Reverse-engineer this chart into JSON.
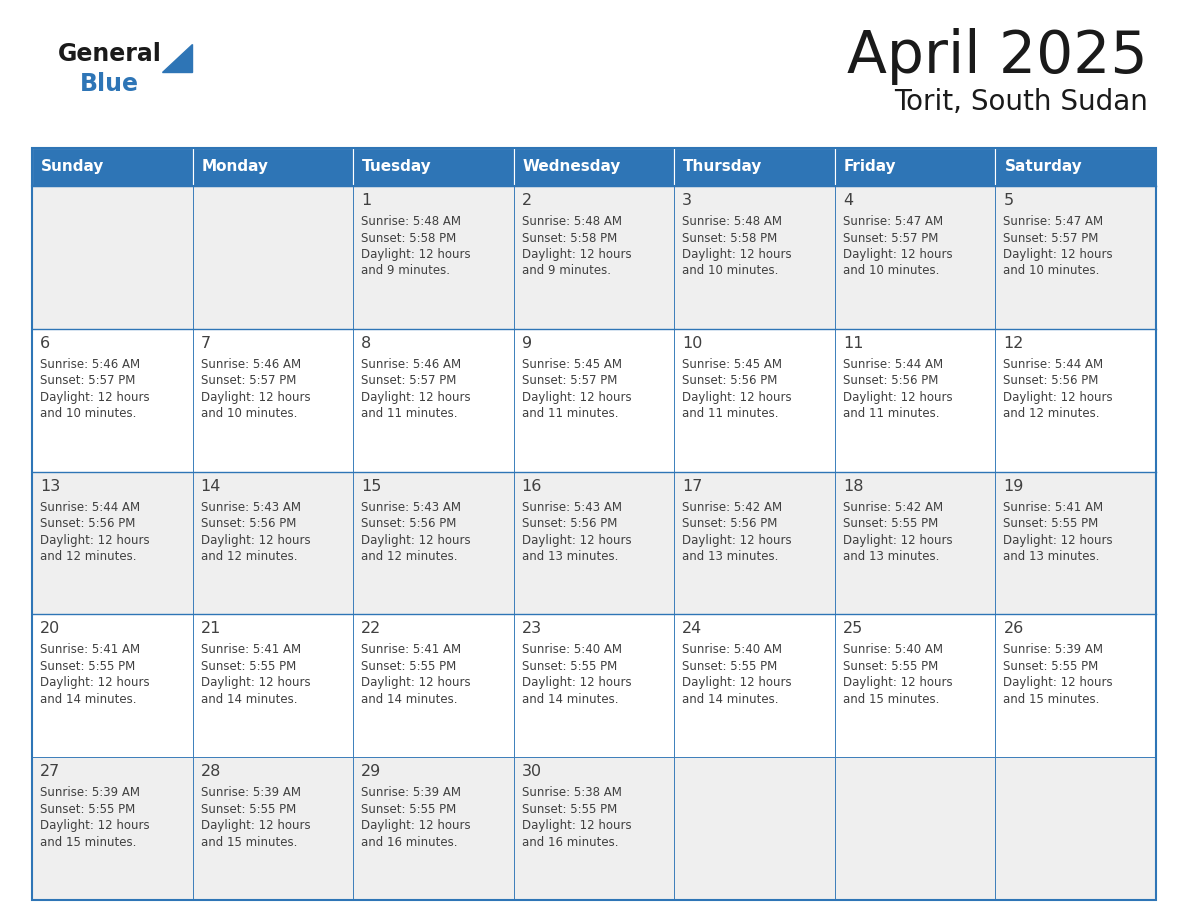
{
  "title": "April 2025",
  "subtitle": "Torit, South Sudan",
  "header_bg": "#2E75B6",
  "header_text_color": "#FFFFFF",
  "day_names": [
    "Sunday",
    "Monday",
    "Tuesday",
    "Wednesday",
    "Thursday",
    "Friday",
    "Saturday"
  ],
  "row_bg_odd": "#EFEFEF",
  "row_bg_even": "#FFFFFF",
  "border_color": "#2E75B6",
  "text_color": "#404040",
  "days": [
    {
      "date": 1,
      "col": 2,
      "row": 0,
      "sunrise": "5:48 AM",
      "sunset": "5:58 PM",
      "daylight_l1": "Daylight: 12 hours",
      "daylight_l2": "and 9 minutes."
    },
    {
      "date": 2,
      "col": 3,
      "row": 0,
      "sunrise": "5:48 AM",
      "sunset": "5:58 PM",
      "daylight_l1": "Daylight: 12 hours",
      "daylight_l2": "and 9 minutes."
    },
    {
      "date": 3,
      "col": 4,
      "row": 0,
      "sunrise": "5:48 AM",
      "sunset": "5:58 PM",
      "daylight_l1": "Daylight: 12 hours",
      "daylight_l2": "and 10 minutes."
    },
    {
      "date": 4,
      "col": 5,
      "row": 0,
      "sunrise": "5:47 AM",
      "sunset": "5:57 PM",
      "daylight_l1": "Daylight: 12 hours",
      "daylight_l2": "and 10 minutes."
    },
    {
      "date": 5,
      "col": 6,
      "row": 0,
      "sunrise": "5:47 AM",
      "sunset": "5:57 PM",
      "daylight_l1": "Daylight: 12 hours",
      "daylight_l2": "and 10 minutes."
    },
    {
      "date": 6,
      "col": 0,
      "row": 1,
      "sunrise": "5:46 AM",
      "sunset": "5:57 PM",
      "daylight_l1": "Daylight: 12 hours",
      "daylight_l2": "and 10 minutes."
    },
    {
      "date": 7,
      "col": 1,
      "row": 1,
      "sunrise": "5:46 AM",
      "sunset": "5:57 PM",
      "daylight_l1": "Daylight: 12 hours",
      "daylight_l2": "and 10 minutes."
    },
    {
      "date": 8,
      "col": 2,
      "row": 1,
      "sunrise": "5:46 AM",
      "sunset": "5:57 PM",
      "daylight_l1": "Daylight: 12 hours",
      "daylight_l2": "and 11 minutes."
    },
    {
      "date": 9,
      "col": 3,
      "row": 1,
      "sunrise": "5:45 AM",
      "sunset": "5:57 PM",
      "daylight_l1": "Daylight: 12 hours",
      "daylight_l2": "and 11 minutes."
    },
    {
      "date": 10,
      "col": 4,
      "row": 1,
      "sunrise": "5:45 AM",
      "sunset": "5:56 PM",
      "daylight_l1": "Daylight: 12 hours",
      "daylight_l2": "and 11 minutes."
    },
    {
      "date": 11,
      "col": 5,
      "row": 1,
      "sunrise": "5:44 AM",
      "sunset": "5:56 PM",
      "daylight_l1": "Daylight: 12 hours",
      "daylight_l2": "and 11 minutes."
    },
    {
      "date": 12,
      "col": 6,
      "row": 1,
      "sunrise": "5:44 AM",
      "sunset": "5:56 PM",
      "daylight_l1": "Daylight: 12 hours",
      "daylight_l2": "and 12 minutes."
    },
    {
      "date": 13,
      "col": 0,
      "row": 2,
      "sunrise": "5:44 AM",
      "sunset": "5:56 PM",
      "daylight_l1": "Daylight: 12 hours",
      "daylight_l2": "and 12 minutes."
    },
    {
      "date": 14,
      "col": 1,
      "row": 2,
      "sunrise": "5:43 AM",
      "sunset": "5:56 PM",
      "daylight_l1": "Daylight: 12 hours",
      "daylight_l2": "and 12 minutes."
    },
    {
      "date": 15,
      "col": 2,
      "row": 2,
      "sunrise": "5:43 AM",
      "sunset": "5:56 PM",
      "daylight_l1": "Daylight: 12 hours",
      "daylight_l2": "and 12 minutes."
    },
    {
      "date": 16,
      "col": 3,
      "row": 2,
      "sunrise": "5:43 AM",
      "sunset": "5:56 PM",
      "daylight_l1": "Daylight: 12 hours",
      "daylight_l2": "and 13 minutes."
    },
    {
      "date": 17,
      "col": 4,
      "row": 2,
      "sunrise": "5:42 AM",
      "sunset": "5:56 PM",
      "daylight_l1": "Daylight: 12 hours",
      "daylight_l2": "and 13 minutes."
    },
    {
      "date": 18,
      "col": 5,
      "row": 2,
      "sunrise": "5:42 AM",
      "sunset": "5:55 PM",
      "daylight_l1": "Daylight: 12 hours",
      "daylight_l2": "and 13 minutes."
    },
    {
      "date": 19,
      "col": 6,
      "row": 2,
      "sunrise": "5:41 AM",
      "sunset": "5:55 PM",
      "daylight_l1": "Daylight: 12 hours",
      "daylight_l2": "and 13 minutes."
    },
    {
      "date": 20,
      "col": 0,
      "row": 3,
      "sunrise": "5:41 AM",
      "sunset": "5:55 PM",
      "daylight_l1": "Daylight: 12 hours",
      "daylight_l2": "and 14 minutes."
    },
    {
      "date": 21,
      "col": 1,
      "row": 3,
      "sunrise": "5:41 AM",
      "sunset": "5:55 PM",
      "daylight_l1": "Daylight: 12 hours",
      "daylight_l2": "and 14 minutes."
    },
    {
      "date": 22,
      "col": 2,
      "row": 3,
      "sunrise": "5:41 AM",
      "sunset": "5:55 PM",
      "daylight_l1": "Daylight: 12 hours",
      "daylight_l2": "and 14 minutes."
    },
    {
      "date": 23,
      "col": 3,
      "row": 3,
      "sunrise": "5:40 AM",
      "sunset": "5:55 PM",
      "daylight_l1": "Daylight: 12 hours",
      "daylight_l2": "and 14 minutes."
    },
    {
      "date": 24,
      "col": 4,
      "row": 3,
      "sunrise": "5:40 AM",
      "sunset": "5:55 PM",
      "daylight_l1": "Daylight: 12 hours",
      "daylight_l2": "and 14 minutes."
    },
    {
      "date": 25,
      "col": 5,
      "row": 3,
      "sunrise": "5:40 AM",
      "sunset": "5:55 PM",
      "daylight_l1": "Daylight: 12 hours",
      "daylight_l2": "and 15 minutes."
    },
    {
      "date": 26,
      "col": 6,
      "row": 3,
      "sunrise": "5:39 AM",
      "sunset": "5:55 PM",
      "daylight_l1": "Daylight: 12 hours",
      "daylight_l2": "and 15 minutes."
    },
    {
      "date": 27,
      "col": 0,
      "row": 4,
      "sunrise": "5:39 AM",
      "sunset": "5:55 PM",
      "daylight_l1": "Daylight: 12 hours",
      "daylight_l2": "and 15 minutes."
    },
    {
      "date": 28,
      "col": 1,
      "row": 4,
      "sunrise": "5:39 AM",
      "sunset": "5:55 PM",
      "daylight_l1": "Daylight: 12 hours",
      "daylight_l2": "and 15 minutes."
    },
    {
      "date": 29,
      "col": 2,
      "row": 4,
      "sunrise": "5:39 AM",
      "sunset": "5:55 PM",
      "daylight_l1": "Daylight: 12 hours",
      "daylight_l2": "and 16 minutes."
    },
    {
      "date": 30,
      "col": 3,
      "row": 4,
      "sunrise": "5:38 AM",
      "sunset": "5:55 PM",
      "daylight_l1": "Daylight: 12 hours",
      "daylight_l2": "and 16 minutes."
    }
  ],
  "num_rows": 5,
  "num_cols": 7,
  "fig_width": 11.88,
  "fig_height": 9.18,
  "dpi": 100
}
